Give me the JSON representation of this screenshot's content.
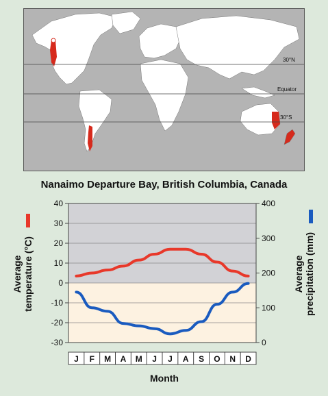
{
  "map": {
    "lines": [
      {
        "label": "30°N"
      },
      {
        "label": "Equator"
      },
      {
        "label": "30°S"
      }
    ],
    "colors": {
      "land": "#ffffff",
      "ocean": "#b4b4b4",
      "mediterranean": "#d62a1c",
      "lines": "#444444"
    }
  },
  "chart_data": {
    "type": "line",
    "title": "Nanaimo Departure Bay, British Columbia, Canada",
    "xlabel": "Month",
    "categories": [
      "J",
      "F",
      "M",
      "A",
      "M",
      "J",
      "J",
      "A",
      "S",
      "O",
      "N",
      "D"
    ],
    "left_axis": {
      "label_line1": "Average",
      "label_line2": "temperature (°C)",
      "ylim": [
        -30,
        40
      ],
      "ticks": [
        40,
        30,
        20,
        10,
        0,
        -10,
        -20,
        -30
      ]
    },
    "right_axis": {
      "label_line1": "Average",
      "label_line2": "precipitation (mm)",
      "ylim": [
        0,
        400
      ],
      "ticks": [
        400,
        300,
        200,
        100,
        0
      ]
    },
    "series": [
      {
        "axis": "left",
        "color": "#e8382a",
        "values": [
          3.5,
          5,
          6.5,
          8.5,
          11.5,
          14.5,
          17,
          17,
          14.5,
          10.5,
          6,
          3.5
        ]
      },
      {
        "axis": "right",
        "color": "#1a5bbf",
        "values": [
          145,
          100,
          90,
          55,
          48,
          40,
          25,
          35,
          60,
          110,
          145,
          170
        ]
      }
    ],
    "bands": {
      "above_zero": "#d2d2d6",
      "below_zero": "#fdf2e1"
    },
    "grid": true
  }
}
